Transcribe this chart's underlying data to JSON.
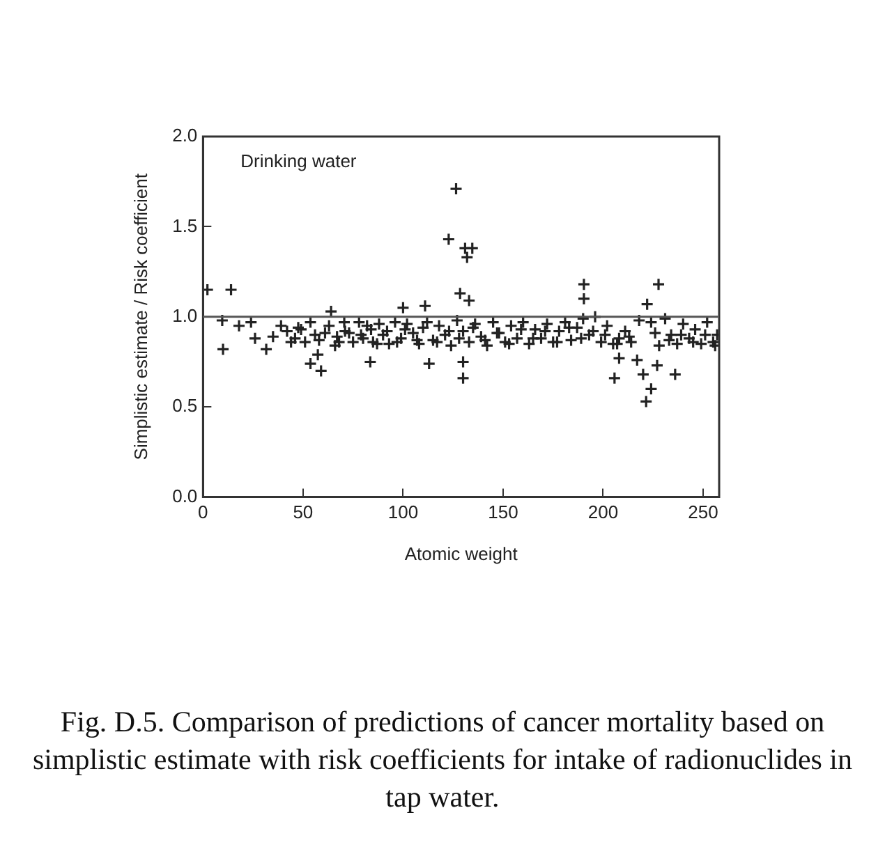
{
  "chart_data": {
    "type": "scatter",
    "xlabel": "Atomic weight",
    "ylabel": "Simplistic estimate / Risk coefficient",
    "annotations": [
      "Drinking water",
      "Fig. D.5. Comparison of predictions of cancer mortality based on simplistic estimate with risk coefficients for intake of radionuclides in tap water."
    ],
    "xlim": [
      0,
      258
    ],
    "xticks": [
      0,
      50,
      100,
      150,
      200,
      250
    ],
    "ylim": [
      0,
      2
    ],
    "yticks": [
      {
        "value": 0,
        "label": "0.0"
      },
      {
        "value": 0.5,
        "label": "0.5"
      },
      {
        "value": 1,
        "label": "1.0"
      },
      {
        "value": 1.5,
        "label": "1.5"
      },
      {
        "value": 2,
        "label": "2.0"
      }
    ],
    "grid": false,
    "legend": false,
    "marker": "cross",
    "ref_lines": [
      {
        "axis": "y",
        "value": 1,
        "color": "#555555"
      }
    ],
    "series": [
      {
        "color": "#222222",
        "x": [
          2.2,
          14,
          9.6,
          10,
          18,
          24,
          26,
          31.6,
          35,
          39,
          44,
          47.6,
          51,
          53.7,
          57.4,
          53.7,
          59,
          64,
          61,
          68,
          73,
          70.6,
          66,
          83.6,
          100,
          111,
          113,
          122.8,
          126.5,
          131,
          134.6,
          132,
          128.5,
          133,
          130,
          130,
          190.4,
          190.4,
          227.7,
          222,
          205.7,
          208,
          220,
          224,
          221.5,
          227,
          236,
          218,
          217,
          42,
          46,
          49,
          56,
          58,
          63,
          67,
          71,
          75,
          78,
          80,
          82,
          85,
          88,
          90,
          93,
          96,
          99,
          102,
          105,
          108,
          112,
          115,
          118,
          121,
          124,
          127,
          130,
          133,
          136,
          139,
          142,
          145,
          148,
          151,
          154,
          157,
          160,
          163,
          166,
          169,
          172,
          175,
          178,
          181,
          184,
          187,
          190,
          193,
          196,
          199,
          202,
          205,
          208,
          211,
          214,
          224,
          228,
          231,
          234,
          237,
          240,
          243,
          246,
          249,
          252,
          255,
          257,
          79,
          84,
          87,
          92,
          97,
          101,
          107,
          110,
          117,
          123,
          128,
          135,
          141,
          147,
          153,
          159,
          165,
          171,
          177,
          183,
          189,
          195,
          201,
          207,
          213,
          226,
          233,
          239,
          245,
          251,
          256
        ],
        "values": [
          1.15,
          1.15,
          0.98,
          0.82,
          0.95,
          0.97,
          0.88,
          0.82,
          0.89,
          0.95,
          0.86,
          0.94,
          0.86,
          0.97,
          0.79,
          0.74,
          0.7,
          1.03,
          0.91,
          0.86,
          0.91,
          0.97,
          0.84,
          0.75,
          1.05,
          1.06,
          0.74,
          1.43,
          1.71,
          1.38,
          1.38,
          1.33,
          1.13,
          1.09,
          0.75,
          0.66,
          1.18,
          1.1,
          1.18,
          1.07,
          0.66,
          0.77,
          0.68,
          0.6,
          0.53,
          0.73,
          0.68,
          0.98,
          0.76,
          0.92,
          0.88,
          0.93,
          0.9,
          0.87,
          0.95,
          0.89,
          0.92,
          0.86,
          0.97,
          0.88,
          0.95,
          0.86,
          0.96,
          0.9,
          0.85,
          0.97,
          0.88,
          0.96,
          0.91,
          0.85,
          0.97,
          0.87,
          0.95,
          0.9,
          0.84,
          0.98,
          0.92,
          0.86,
          0.96,
          0.89,
          0.84,
          0.97,
          0.91,
          0.86,
          0.95,
          0.88,
          0.97,
          0.85,
          0.93,
          0.88,
          0.96,
          0.86,
          0.92,
          0.97,
          0.87,
          0.94,
          0.99,
          0.9,
          1.0,
          0.86,
          0.95,
          0.85,
          0.88,
          0.92,
          0.86,
          0.97,
          0.84,
          0.99,
          0.9,
          0.85,
          0.96,
          0.88,
          0.93,
          0.85,
          0.97,
          0.86,
          0.9,
          0.9,
          0.93,
          0.85,
          0.92,
          0.86,
          0.93,
          0.87,
          0.94,
          0.86,
          0.92,
          0.88,
          0.94,
          0.87,
          0.91,
          0.85,
          0.93,
          0.88,
          0.92,
          0.86,
          0.94,
          0.88,
          0.92,
          0.9,
          0.85,
          0.89,
          0.91,
          0.87,
          0.9,
          0.86,
          0.9,
          0.84
        ]
      }
    ]
  }
}
